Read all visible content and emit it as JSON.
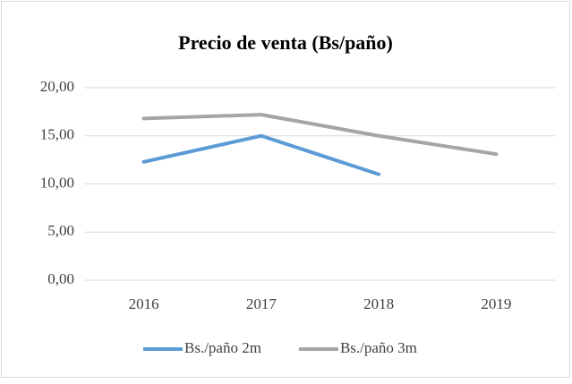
{
  "chart_data": {
    "type": "line",
    "title": "Precio de venta (Bs/paño)",
    "categories": [
      "2016",
      "2017",
      "2018",
      "2019"
    ],
    "series": [
      {
        "name": "Bs./paño 2m",
        "color": "#5b9bd5",
        "values": [
          12.3,
          15.0,
          11.0,
          null
        ]
      },
      {
        "name": "Bs./paño 3m",
        "color": "#a5a5a5",
        "values": [
          16.8,
          17.2,
          15.0,
          13.1
        ]
      }
    ],
    "ylim": [
      0,
      20
    ],
    "yticks": [
      {
        "value": 0,
        "label": "0,00"
      },
      {
        "value": 5,
        "label": "5,00"
      },
      {
        "value": 10,
        "label": "10,00"
      },
      {
        "value": 15,
        "label": "15,00"
      },
      {
        "value": 20,
        "label": "20,00"
      }
    ],
    "grid": true,
    "legend": "bottom"
  }
}
